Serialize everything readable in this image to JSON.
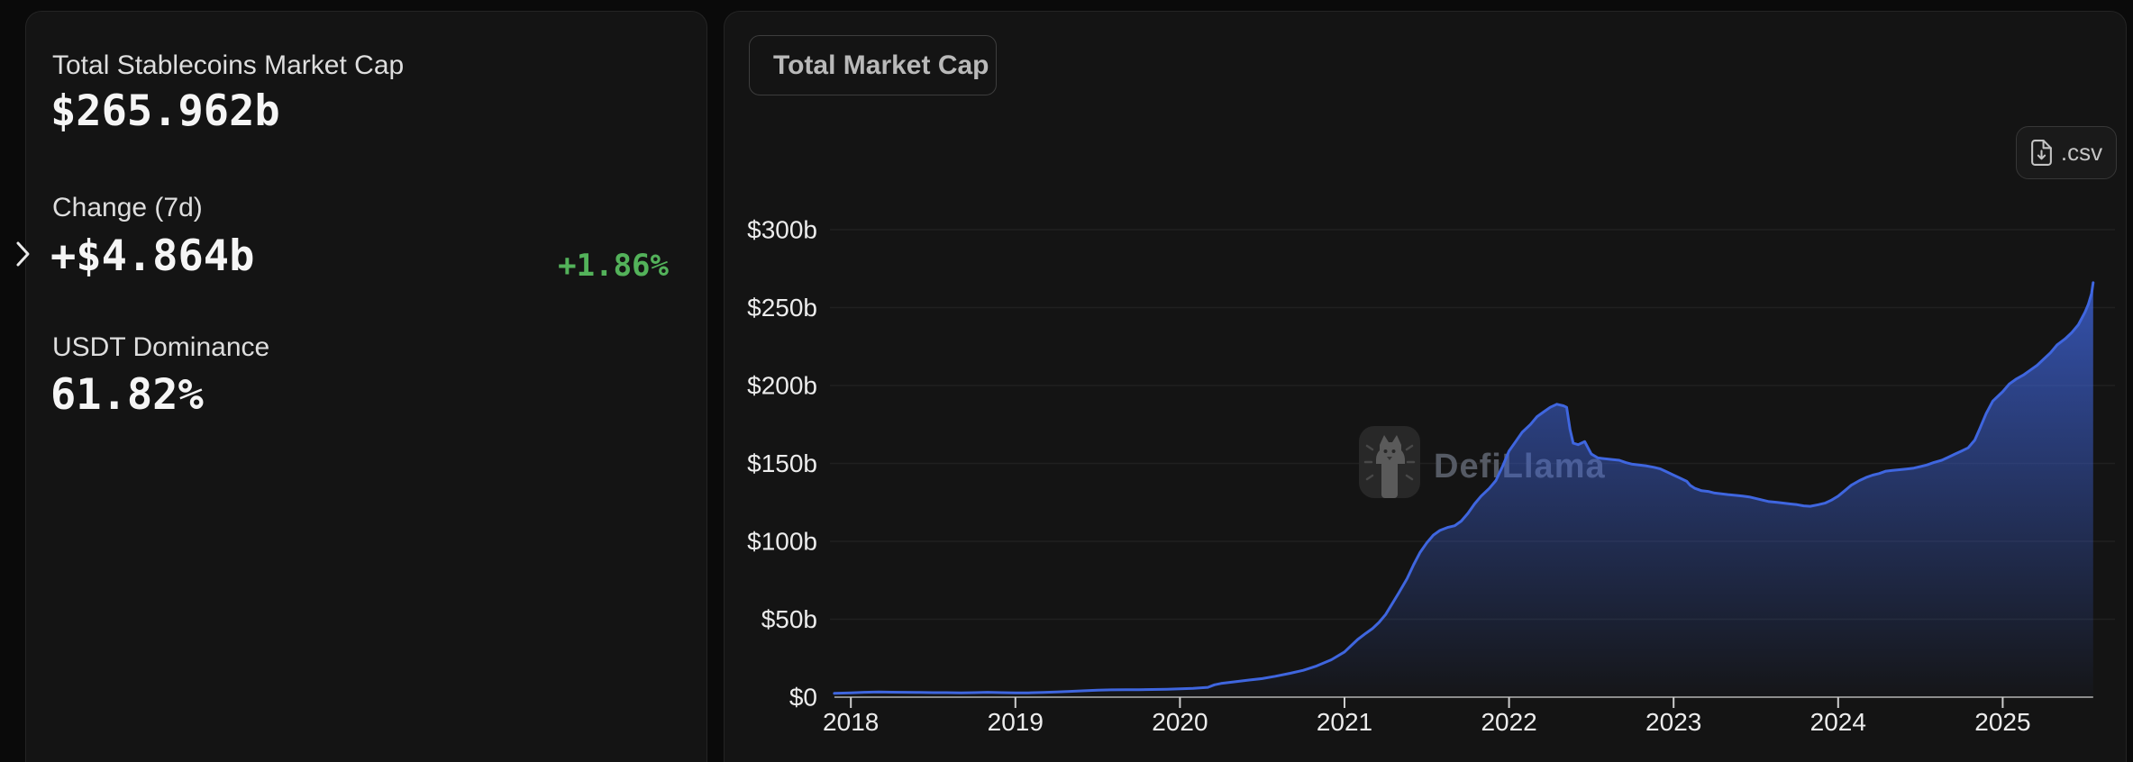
{
  "colors": {
    "background": "#0a0a0a",
    "card": "#141414",
    "positive_green": "#53b25a",
    "chart_line": "#3f66df",
    "axis_line": "#8c8c8c",
    "tick_mark": "#cdcdcd",
    "tick_label": "#ececec",
    "gridline": "rgba(255,255,255,0.055)",
    "watermark_text": "#555a64"
  },
  "stats_panel": {
    "expand_icon": "chevron-right-icon",
    "items": [
      {
        "label": "Total Stablecoins Market Cap",
        "value": "$265.962b"
      },
      {
        "label": "Change (7d)",
        "value": "+$4.864b",
        "percent": "+1.86%"
      },
      {
        "label": "USDT Dominance",
        "value": "61.82%"
      }
    ]
  },
  "chart_panel": {
    "dropdown": {
      "label": "Total Market Cap",
      "icon": "chevron-down-icon"
    },
    "csv_button": {
      "label": ".csv",
      "icon": "file-download-icon"
    },
    "watermark": "DefiLlama"
  },
  "chart_data": {
    "type": "area",
    "title": "Total Market Cap",
    "series_name": "Total Stablecoins Market Cap",
    "x_unit": "year (fractional = position within year)",
    "y_unit": "billions USD",
    "xlim": [
      2017.9,
      2025.55
    ],
    "ylim": [
      0,
      300
    ],
    "grid": "horizontal",
    "legend": false,
    "y_ticks": [
      {
        "label": "$300b",
        "value": 300
      },
      {
        "label": "$250b",
        "value": 250
      },
      {
        "label": "$200b",
        "value": 200
      },
      {
        "label": "$150b",
        "value": 150
      },
      {
        "label": "$100b",
        "value": 100
      },
      {
        "label": "$50b",
        "value": 50
      },
      {
        "label": "$0",
        "value": 0
      }
    ],
    "x_ticks": [
      {
        "label": "2018",
        "value": 2018
      },
      {
        "label": "2019",
        "value": 2019
      },
      {
        "label": "2020",
        "value": 2020
      },
      {
        "label": "2021",
        "value": 2021
      },
      {
        "label": "2022",
        "value": 2022
      },
      {
        "label": "2023",
        "value": 2023
      },
      {
        "label": "2024",
        "value": 2024
      },
      {
        "label": "2025",
        "value": 2025
      }
    ],
    "points": [
      [
        2017.9,
        2.4
      ],
      [
        2018.0,
        2.8
      ],
      [
        2018.08,
        3.1
      ],
      [
        2018.17,
        3.3
      ],
      [
        2018.25,
        3.2
      ],
      [
        2018.33,
        3.1
      ],
      [
        2018.42,
        3.0
      ],
      [
        2018.5,
        2.9
      ],
      [
        2018.58,
        2.9
      ],
      [
        2018.67,
        2.8
      ],
      [
        2018.75,
        2.9
      ],
      [
        2018.83,
        3.1
      ],
      [
        2018.92,
        2.9
      ],
      [
        2019.0,
        2.7
      ],
      [
        2019.08,
        2.8
      ],
      [
        2019.17,
        3.0
      ],
      [
        2019.25,
        3.3
      ],
      [
        2019.33,
        3.7
      ],
      [
        2019.42,
        4.1
      ],
      [
        2019.5,
        4.5
      ],
      [
        2019.58,
        4.7
      ],
      [
        2019.67,
        4.8
      ],
      [
        2019.75,
        4.8
      ],
      [
        2019.83,
        4.9
      ],
      [
        2019.92,
        5.1
      ],
      [
        2020.0,
        5.3
      ],
      [
        2020.08,
        5.6
      ],
      [
        2020.17,
        6.3
      ],
      [
        2020.21,
        7.9
      ],
      [
        2020.25,
        8.8
      ],
      [
        2020.33,
        9.8
      ],
      [
        2020.42,
        11.0
      ],
      [
        2020.5,
        11.9
      ],
      [
        2020.58,
        13.4
      ],
      [
        2020.67,
        15.3
      ],
      [
        2020.75,
        17.2
      ],
      [
        2020.83,
        20.0
      ],
      [
        2020.92,
        24.0
      ],
      [
        2021.0,
        29
      ],
      [
        2021.04,
        33
      ],
      [
        2021.08,
        37
      ],
      [
        2021.13,
        41
      ],
      [
        2021.17,
        44
      ],
      [
        2021.21,
        48
      ],
      [
        2021.25,
        53
      ],
      [
        2021.29,
        60
      ],
      [
        2021.33,
        67
      ],
      [
        2021.38,
        76
      ],
      [
        2021.42,
        85
      ],
      [
        2021.46,
        93
      ],
      [
        2021.5,
        99
      ],
      [
        2021.54,
        104
      ],
      [
        2021.58,
        107
      ],
      [
        2021.63,
        109
      ],
      [
        2021.67,
        110
      ],
      [
        2021.71,
        113
      ],
      [
        2021.75,
        118
      ],
      [
        2021.79,
        124
      ],
      [
        2021.83,
        129
      ],
      [
        2021.88,
        134
      ],
      [
        2021.92,
        139
      ],
      [
        2021.96,
        148
      ],
      [
        2022.0,
        158
      ],
      [
        2022.04,
        164
      ],
      [
        2022.08,
        170
      ],
      [
        2022.13,
        175
      ],
      [
        2022.17,
        180
      ],
      [
        2022.21,
        183
      ],
      [
        2022.25,
        186
      ],
      [
        2022.29,
        188
      ],
      [
        2022.33,
        187
      ],
      [
        2022.35,
        186
      ],
      [
        2022.37,
        172
      ],
      [
        2022.39,
        163
      ],
      [
        2022.42,
        162
      ],
      [
        2022.44,
        163
      ],
      [
        2022.46,
        164
      ],
      [
        2022.48,
        160
      ],
      [
        2022.5,
        156
      ],
      [
        2022.54,
        153.5
      ],
      [
        2022.58,
        153
      ],
      [
        2022.63,
        152.5
      ],
      [
        2022.67,
        152
      ],
      [
        2022.71,
        150.5
      ],
      [
        2022.75,
        149.5
      ],
      [
        2022.79,
        149
      ],
      [
        2022.83,
        148.5
      ],
      [
        2022.88,
        147.5
      ],
      [
        2022.92,
        146.5
      ],
      [
        2022.96,
        144.5
      ],
      [
        2023.0,
        142.5
      ],
      [
        2023.04,
        140.5
      ],
      [
        2023.08,
        138.5
      ],
      [
        2023.1,
        136
      ],
      [
        2023.13,
        134
      ],
      [
        2023.17,
        132.5
      ],
      [
        2023.21,
        132
      ],
      [
        2023.25,
        131
      ],
      [
        2023.29,
        130.5
      ],
      [
        2023.33,
        130
      ],
      [
        2023.38,
        129.5
      ],
      [
        2023.42,
        129
      ],
      [
        2023.46,
        128.5
      ],
      [
        2023.5,
        127.5
      ],
      [
        2023.54,
        126.5
      ],
      [
        2023.58,
        125.5
      ],
      [
        2023.63,
        125
      ],
      [
        2023.67,
        124.5
      ],
      [
        2023.71,
        124
      ],
      [
        2023.75,
        123.5
      ],
      [
        2023.79,
        122.8
      ],
      [
        2023.83,
        122.5
      ],
      [
        2023.88,
        123.5
      ],
      [
        2023.92,
        124.5
      ],
      [
        2023.96,
        126.5
      ],
      [
        2024.0,
        129
      ],
      [
        2024.04,
        132.5
      ],
      [
        2024.08,
        136
      ],
      [
        2024.13,
        139
      ],
      [
        2024.17,
        141
      ],
      [
        2024.21,
        142.5
      ],
      [
        2024.25,
        143.5
      ],
      [
        2024.29,
        145
      ],
      [
        2024.33,
        145.5
      ],
      [
        2024.38,
        146
      ],
      [
        2024.42,
        146.5
      ],
      [
        2024.46,
        147
      ],
      [
        2024.5,
        148
      ],
      [
        2024.54,
        149
      ],
      [
        2024.58,
        150.5
      ],
      [
        2024.63,
        152
      ],
      [
        2024.67,
        154
      ],
      [
        2024.71,
        156
      ],
      [
        2024.75,
        158
      ],
      [
        2024.79,
        160
      ],
      [
        2024.83,
        165
      ],
      [
        2024.86,
        172
      ],
      [
        2024.9,
        182
      ],
      [
        2024.94,
        190
      ],
      [
        2024.98,
        194
      ],
      [
        2025.0,
        196
      ],
      [
        2025.04,
        201
      ],
      [
        2025.08,
        204
      ],
      [
        2025.13,
        207
      ],
      [
        2025.17,
        210
      ],
      [
        2025.21,
        213
      ],
      [
        2025.25,
        217
      ],
      [
        2025.29,
        221
      ],
      [
        2025.33,
        226
      ],
      [
        2025.38,
        230
      ],
      [
        2025.42,
        234
      ],
      [
        2025.46,
        239
      ],
      [
        2025.5,
        247
      ],
      [
        2025.52,
        252
      ],
      [
        2025.54,
        259
      ],
      [
        2025.55,
        266
      ]
    ]
  }
}
